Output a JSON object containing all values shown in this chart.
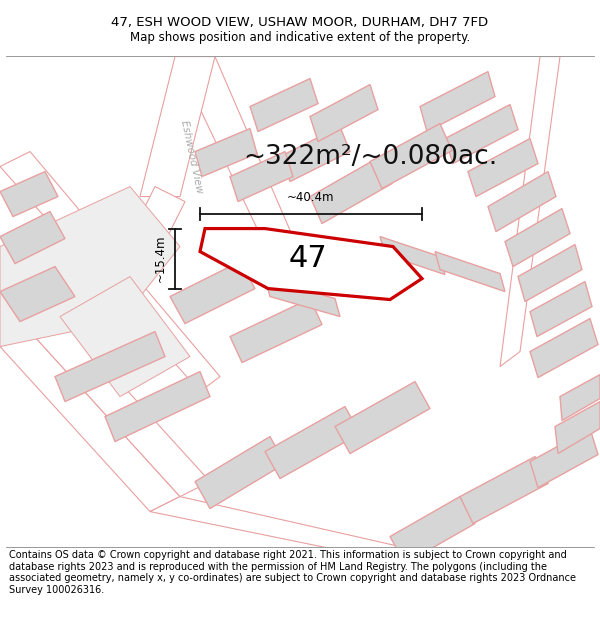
{
  "title_line1": "47, ESH WOOD VIEW, USHAW MOOR, DURHAM, DH7 7FD",
  "title_line2": "Map shows position and indicative extent of the property.",
  "area_text": "~322m²/~0.080ac.",
  "label_47": "47",
  "dim_width": "~40.4m",
  "dim_height": "~15.4m",
  "road_label": "Eshwood View",
  "footer_text": "Contains OS data © Crown copyright and database right 2021. This information is subject to Crown copyright and database rights 2023 and is reproduced with the permission of HM Land Registry. The polygons (including the associated geometry, namely x, y co-ordinates) are subject to Crown copyright and database rights 2023 Ordnance Survey 100026316.",
  "bg_color": "#ffffff",
  "map_bg": "#f7f4f4",
  "plot_fill": "#ffffff",
  "plot_edge": "#cc0000",
  "building_fill": "#d6d6d6",
  "building_edge": "#e8a0a0",
  "parcel_fill": "#eeeeee",
  "parcel_edge": "#e8a0a0",
  "road_color": "#ffffff",
  "road_edge": "#e8a0a0",
  "dim_line_color": "#111111",
  "title_fontsize": 9.5,
  "subtitle_fontsize": 8.5,
  "area_fontsize": 19,
  "label_fontsize": 22,
  "dim_fontsize": 8.5,
  "road_fontsize": 7.5,
  "footer_fontsize": 7.0
}
